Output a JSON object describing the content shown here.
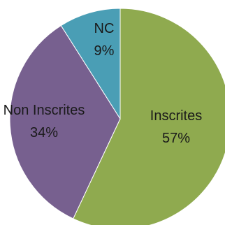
{
  "chart_data": {
    "type": "pie",
    "title": "",
    "start_angle_deg": 0,
    "direction": "clockwise",
    "series": [
      {
        "slices": [
          {
            "label": "Inscrites",
            "value": 57,
            "value_label": "57%",
            "color": "#8faa4f"
          },
          {
            "label": "Non Inscrites",
            "value": 34,
            "value_label": "34%",
            "color": "#77608f"
          },
          {
            "label": "NC",
            "value": 9,
            "value_label": "9%",
            "color": "#4a9eb5"
          }
        ]
      }
    ]
  }
}
